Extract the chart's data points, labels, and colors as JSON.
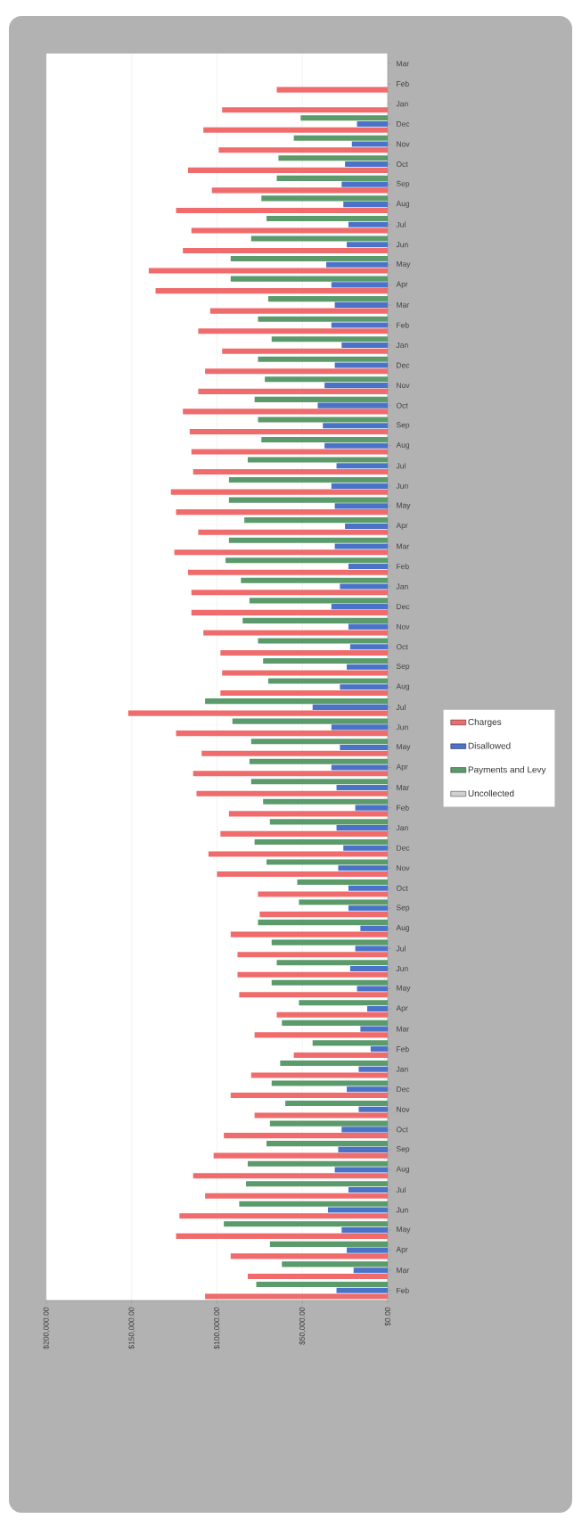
{
  "chart_data": {
    "type": "bar",
    "orientation": "horizontal",
    "categories": [
      "Mar",
      "Feb",
      "Jan",
      "Dec",
      "Nov",
      "Oct",
      "Sep",
      "Aug",
      "Jul",
      "Jun",
      "May",
      "Apr",
      "Mar",
      "Feb",
      "Jan",
      "Dec",
      "Nov",
      "Oct",
      "Sep",
      "Aug",
      "Jul",
      "Jun",
      "May",
      "Apr",
      "Mar",
      "Feb",
      "Jan",
      "Dec",
      "Nov",
      "Oct",
      "Sep",
      "Aug",
      "Jul",
      "Jun",
      "May",
      "Apr",
      "Mar",
      "Feb",
      "Jan",
      "Dec",
      "Nov",
      "Oct",
      "Sep",
      "Aug",
      "Jul",
      "Jun",
      "May",
      "Apr",
      "Mar",
      "Feb",
      "Jan",
      "Dec",
      "Nov",
      "Oct",
      "Sep",
      "Aug",
      "Jul",
      "Jun",
      "May",
      "Apr",
      "Mar",
      "Feb"
    ],
    "series": [
      {
        "name": "Uncollected",
        "color": "#d0d0d0",
        "values": [
          null,
          null,
          null,
          null,
          null,
          null,
          null,
          null,
          null,
          null,
          null,
          null,
          null,
          null,
          null,
          null,
          null,
          null,
          null,
          null,
          null,
          null,
          null,
          null,
          null,
          null,
          null,
          null,
          null,
          null,
          null,
          null,
          null,
          null,
          null,
          null,
          null,
          null,
          null,
          null,
          null,
          null,
          null,
          null,
          null,
          null,
          null,
          null,
          null,
          null,
          null,
          null,
          null,
          null,
          null,
          null,
          null,
          null,
          null,
          null,
          null,
          null
        ]
      },
      {
        "name": "Payments and Levy",
        "color": "#5b9a6b",
        "values": [
          null,
          null,
          null,
          51000,
          55000,
          64000,
          65000,
          74000,
          71000,
          80000,
          92000,
          92000,
          70000,
          76000,
          68000,
          76000,
          72000,
          78000,
          76000,
          74000,
          82000,
          93000,
          93000,
          84000,
          93000,
          95000,
          86000,
          81000,
          85000,
          76000,
          73000,
          70000,
          107000,
          91000,
          80000,
          81000,
          80000,
          73000,
          69000,
          78000,
          71000,
          53000,
          52000,
          76000,
          68000,
          65000,
          68000,
          52000,
          62000,
          44000,
          63000,
          68000,
          60000,
          69000,
          71000,
          82000,
          83000,
          87000,
          96000,
          69000,
          62000,
          77000
        ]
      },
      {
        "name": "Disallowed",
        "color": "#4a72c8",
        "values": [
          null,
          null,
          null,
          18000,
          21000,
          25000,
          27000,
          26000,
          23000,
          24000,
          36000,
          33000,
          31000,
          33000,
          27000,
          31000,
          37000,
          41000,
          38000,
          37000,
          30000,
          33000,
          31000,
          25000,
          31000,
          23000,
          28000,
          33000,
          23000,
          22000,
          24000,
          28000,
          44000,
          33000,
          28000,
          33000,
          30000,
          19000,
          30000,
          26000,
          29000,
          23000,
          23000,
          16000,
          19000,
          22000,
          18000,
          12000,
          16000,
          10000,
          17000,
          24000,
          17000,
          27000,
          29000,
          31000,
          23000,
          35000,
          27000,
          24000,
          20000,
          30000
        ]
      },
      {
        "name": "Charges",
        "color": "#f06b6b",
        "values": [
          null,
          65000,
          97000,
          108000,
          99000,
          117000,
          103000,
          124000,
          115000,
          120000,
          140000,
          136000,
          104000,
          111000,
          97000,
          107000,
          111000,
          120000,
          116000,
          115000,
          114000,
          127000,
          124000,
          111000,
          125000,
          117000,
          115000,
          115000,
          108000,
          98000,
          97000,
          98000,
          152000,
          124000,
          109000,
          114000,
          112000,
          93000,
          98000,
          105000,
          100000,
          76000,
          75000,
          92000,
          88000,
          88000,
          87000,
          65000,
          78000,
          55000,
          80000,
          92000,
          78000,
          96000,
          102000,
          114000,
          107000,
          122000,
          124000,
          92000,
          82000,
          107000
        ]
      }
    ],
    "xlim": [
      200000,
      0
    ],
    "xticks": [
      {
        "value": 200000,
        "label": "$200,000.00"
      },
      {
        "value": 150000,
        "label": "$150,000.00"
      },
      {
        "value": 100000,
        "label": "$100,000.00"
      },
      {
        "value": 50000,
        "label": "$50,000.00"
      },
      {
        "value": 0,
        "label": "$0.00"
      }
    ],
    "grid": "x",
    "legend": "right"
  }
}
